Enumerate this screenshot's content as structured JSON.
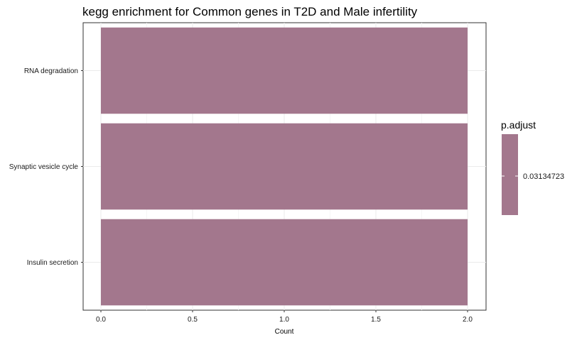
{
  "chart_data": {
    "type": "bar",
    "orientation": "horizontal",
    "title": "kegg enrichment for Common genes in T2D and Male infertility",
    "xlabel": "Count",
    "ylabel": "",
    "xlim": [
      0,
      2.1
    ],
    "x_ticks": [
      "0.0",
      "0.5",
      "1.0",
      "1.5",
      "2.0"
    ],
    "categories": [
      "RNA degradation",
      "Synaptic vesicle cycle",
      "Insulin secretion"
    ],
    "values": [
      2,
      2,
      2
    ],
    "p_adjust": [
      0.03134723,
      0.03134723,
      0.03134723
    ],
    "bar_color": "#a3778d",
    "grid": true,
    "legend": {
      "title": "p.adjust",
      "placement": "right",
      "labels": [
        "0.03134723"
      ],
      "color": "#a3778d"
    }
  }
}
